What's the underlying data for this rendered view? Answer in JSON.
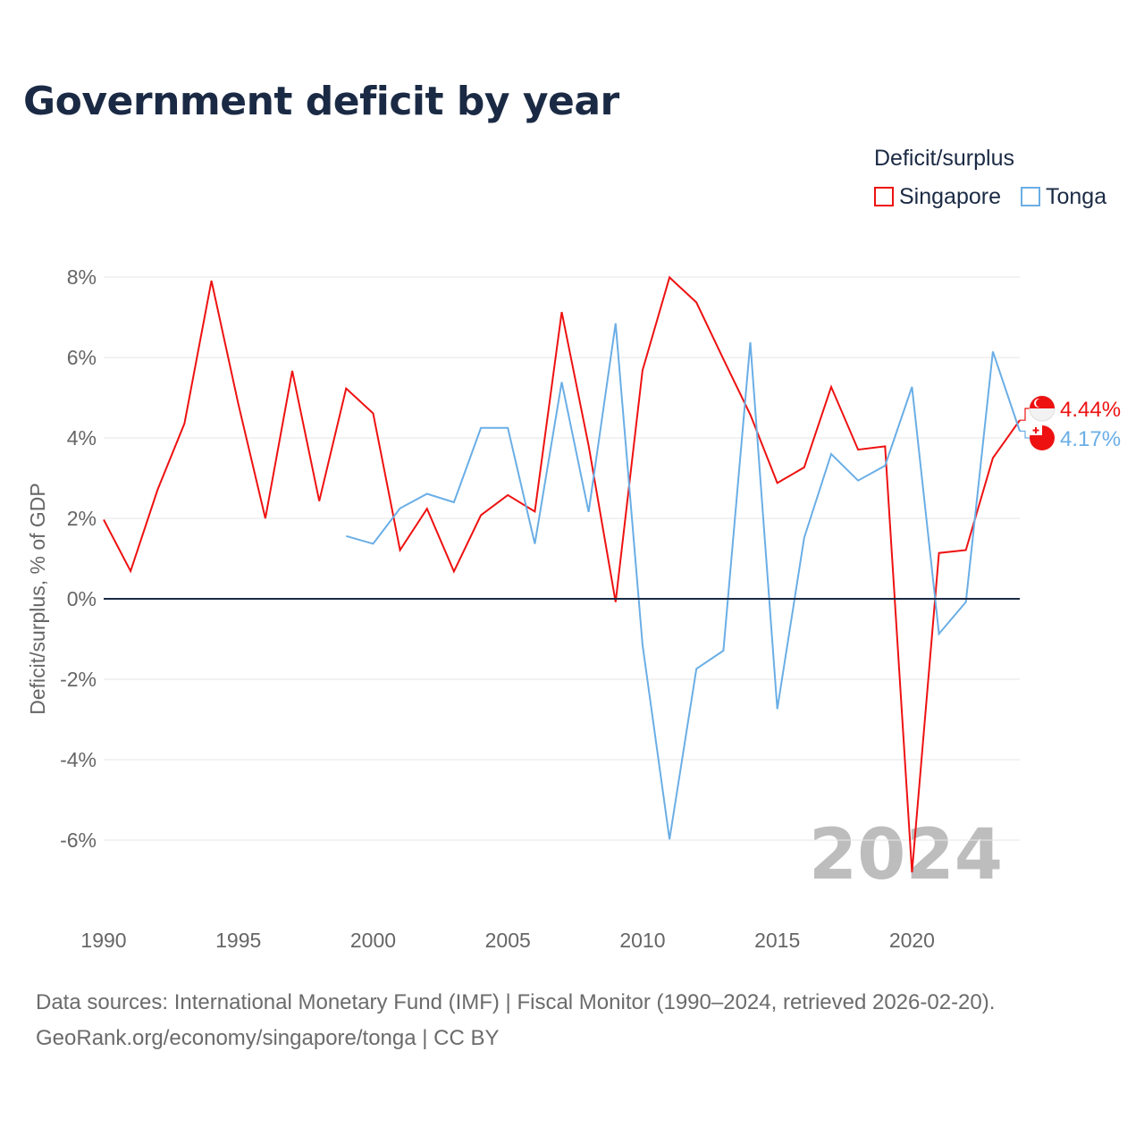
{
  "title": "Government deficit by year",
  "legend": {
    "title": "Deficit/surplus",
    "items": [
      {
        "name": "Singapore",
        "color": "#ee1111"
      },
      {
        "name": "Tonga",
        "color": "#6aaee6"
      }
    ]
  },
  "watermark_year": "2024",
  "footer": {
    "line1": "Data sources: International Monetary Fund (IMF) | Fiscal Monitor (1990–2024, retrieved 2026-02-20).",
    "line2": "GeoRank.org/economy/singapore/tonga | CC BY"
  },
  "chart_data": {
    "type": "line",
    "title": "Government deficit by year",
    "xlabel": "",
    "ylabel": "Deficit/surplus, % of GDP",
    "xlim": [
      1990,
      2024
    ],
    "ylim": [
      -8,
      8
    ],
    "x_ticks": [
      1990,
      1995,
      2000,
      2005,
      2010,
      2015,
      2020
    ],
    "y_ticks": [
      -6,
      -4,
      -2,
      0,
      2,
      4,
      6,
      8
    ],
    "y_tick_labels": [
      "-6%",
      "-4%",
      "-2%",
      "0%",
      "2%",
      "4%",
      "6%",
      "8%"
    ],
    "grid": true,
    "legend_position": "top-right",
    "series": [
      {
        "name": "Singapore",
        "color": "#ee1111",
        "end_label": "4.44%",
        "x": [
          1990,
          1991,
          1992,
          1993,
          1994,
          1995,
          1996,
          1997,
          1998,
          1999,
          2000,
          2001,
          2002,
          2003,
          2004,
          2005,
          2006,
          2007,
          2008,
          2009,
          2010,
          2011,
          2012,
          2013,
          2014,
          2015,
          2016,
          2017,
          2018,
          2019,
          2020,
          2021,
          2022,
          2023,
          2024
        ],
        "values": [
          1.97,
          0.69,
          2.71,
          4.36,
          7.91,
          4.84,
          2.0,
          5.67,
          2.43,
          5.23,
          4.61,
          1.21,
          2.24,
          0.68,
          2.08,
          2.58,
          2.17,
          7.13,
          3.81,
          -0.08,
          5.68,
          7.99,
          7.37,
          5.96,
          4.58,
          2.88,
          3.27,
          5.27,
          3.71,
          3.79,
          -6.8,
          1.14,
          1.21,
          3.5,
          4.44
        ]
      },
      {
        "name": "Tonga",
        "color": "#6aaee6",
        "end_label": "4.17%",
        "x": [
          1999,
          2000,
          2001,
          2002,
          2003,
          2004,
          2005,
          2006,
          2007,
          2008,
          2009,
          2010,
          2011,
          2012,
          2013,
          2014,
          2015,
          2016,
          2017,
          2018,
          2019,
          2020,
          2021,
          2022,
          2023,
          2024
        ],
        "values": [
          1.56,
          1.37,
          2.25,
          2.61,
          2.4,
          4.25,
          4.25,
          1.37,
          5.39,
          2.16,
          6.85,
          -1.14,
          -5.98,
          -1.74,
          -1.29,
          6.38,
          -2.74,
          1.52,
          3.6,
          2.94,
          3.31,
          5.27,
          -0.87,
          -0.08,
          6.15,
          4.17
        ]
      }
    ]
  }
}
